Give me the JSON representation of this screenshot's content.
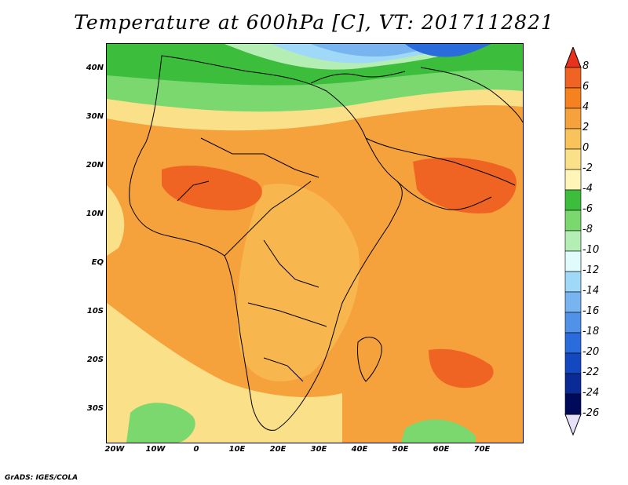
{
  "title": "Temperature at 600hPa [C], VT: 2017112821",
  "credit": "GrADS: IGES/COLA",
  "lat_ticks": [
    "40N",
    "30N",
    "20N",
    "10N",
    "EQ",
    "10S",
    "20S",
    "30S"
  ],
  "lon_ticks": [
    "20W",
    "10W",
    "0",
    "10E",
    "20E",
    "30E",
    "40E",
    "50E",
    "60E",
    "70E"
  ],
  "colorbar": {
    "labels": [
      "8",
      "6",
      "4",
      "2",
      "0",
      "-2",
      "-4",
      "-6",
      "-8",
      "-10",
      "-12",
      "-14",
      "-16",
      "-18",
      "-20",
      "-22",
      "-24",
      "-26"
    ],
    "colors": [
      "#e8321c",
      "#f06423",
      "#f5821f",
      "#f5a23c",
      "#f8c35a",
      "#fbe08a",
      "#fff5b8",
      "#3cbe3c",
      "#7ad86e",
      "#b4eeb4",
      "#e0fbfb",
      "#a0d8f8",
      "#78b4f0",
      "#5092e8",
      "#2a6cdc",
      "#1448c0",
      "#0a2a96",
      "#000a5a",
      "#e6e0f8"
    ]
  }
}
